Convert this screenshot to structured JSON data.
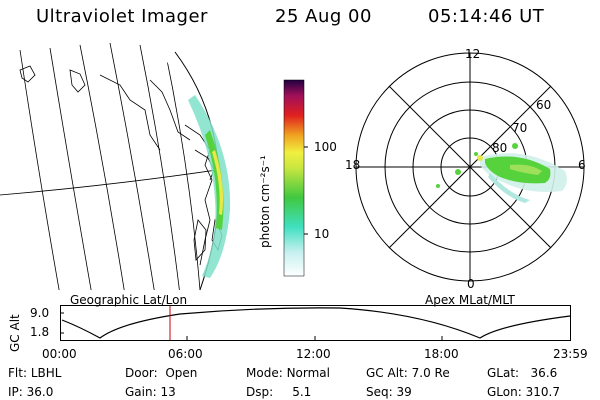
{
  "header": {
    "title": "Ultraviolet Imager",
    "date": "25 Aug 00",
    "time": "05:14:46 UT"
  },
  "colorbar": {
    "unit_label": "photon cm⁻²s⁻¹",
    "ticks": [
      "100",
      "10"
    ]
  },
  "polar": {
    "mlt_labels": {
      "top": "12",
      "left": "18",
      "right": "6",
      "bottom": "0"
    },
    "lat_labels": [
      "60",
      "70",
      "80"
    ]
  },
  "map_captions": {
    "left": "Geographic Lat/Lon",
    "right": "Apex MLat/MLT"
  },
  "altitude_plot": {
    "ylabel": "GC Alt",
    "yticks": [
      "9.0",
      "1.8"
    ],
    "xticks": [
      "00:00",
      "06:00",
      "12:00",
      "18:00",
      "23:59"
    ],
    "current_time_marker": "05:14"
  },
  "status": {
    "flt": {
      "label": "Flt:",
      "value": "LBHL"
    },
    "ip": {
      "label": "IP:",
      "value": "36.0"
    },
    "door": {
      "label": "Door:",
      "value": "Open"
    },
    "gain": {
      "label": "Gain:",
      "value": "13"
    },
    "mode": {
      "label": "Mode:",
      "value": "Normal"
    },
    "dsp": {
      "label": "Dsp:",
      "value": "5.1"
    },
    "gcalt": {
      "label": "GC Alt:",
      "value": "7.0 Re"
    },
    "seq": {
      "label": "Seq:",
      "value": "39"
    },
    "glat": {
      "label": "GLat:",
      "value": "36.6"
    },
    "glon": {
      "label": "GLon:",
      "value": "310.7"
    }
  },
  "colors": {
    "aurora_low": "#7fe0c8",
    "aurora_mid": "#56d23c",
    "aurora_high": "#e8e84a",
    "line": "#000000",
    "marker": "#cc0000"
  }
}
